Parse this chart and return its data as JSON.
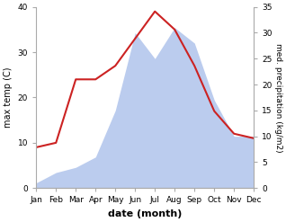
{
  "months": [
    "Jan",
    "Feb",
    "Mar",
    "Apr",
    "May",
    "Jun",
    "Jul",
    "Aug",
    "Sep",
    "Oct",
    "Nov",
    "Dec"
  ],
  "temperature": [
    9,
    10,
    24,
    24,
    27,
    33,
    39,
    35,
    27,
    17,
    12,
    11
  ],
  "precipitation": [
    1,
    3,
    4,
    6,
    15,
    30,
    25,
    31,
    28,
    17,
    10,
    10
  ],
  "temp_color": "#cc2222",
  "precip_color": "#bbccee",
  "ylabel_left": "max temp (C)",
  "ylabel_right": "med. precipitation (kg/m2)",
  "xlabel": "date (month)",
  "ylim_left": [
    0,
    40
  ],
  "ylim_right": [
    0,
    35
  ],
  "yticks_left": [
    0,
    10,
    20,
    30,
    40
  ],
  "yticks_right": [
    0,
    5,
    10,
    15,
    20,
    25,
    30,
    35
  ],
  "bg_color": "#ffffff"
}
